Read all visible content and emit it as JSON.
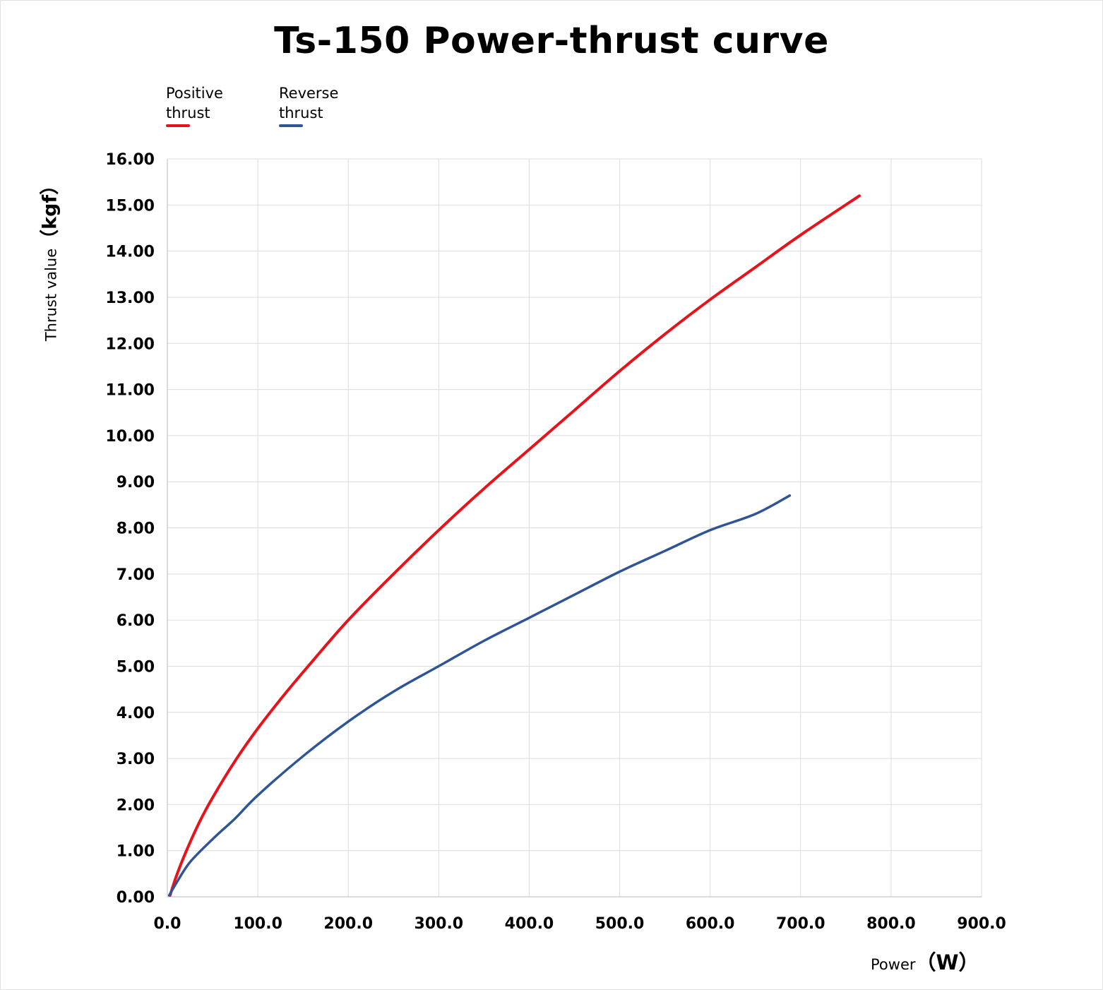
{
  "chart_data": {
    "type": "line",
    "title": "Ts-150 Power-thrust curve",
    "xlabel": "Power",
    "xlabel_unit": "（W）",
    "ylabel": "Thrust value",
    "ylabel_unit": "（kgf）",
    "xlim": [
      0,
      900
    ],
    "ylim": [
      0,
      16
    ],
    "x_ticks": [
      "0.0",
      "100.0",
      "200.0",
      "300.0",
      "400.0",
      "500.0",
      "600.0",
      "700.0",
      "800.0",
      "900.0"
    ],
    "y_ticks": [
      "0.00",
      "1.00",
      "2.00",
      "3.00",
      "4.00",
      "5.00",
      "6.00",
      "7.00",
      "8.00",
      "9.00",
      "10.00",
      "11.00",
      "12.00",
      "13.00",
      "14.00",
      "15.00",
      "16.00"
    ],
    "grid": true,
    "legend_position": "top-left",
    "series": [
      {
        "name": "Positive thrust",
        "color": "#e8121b",
        "points": [
          [
            3,
            0.03
          ],
          [
            10,
            0.45
          ],
          [
            20,
            0.95
          ],
          [
            35,
            1.6
          ],
          [
            50,
            2.15
          ],
          [
            75,
            2.95
          ],
          [
            100,
            3.65
          ],
          [
            130,
            4.4
          ],
          [
            160,
            5.1
          ],
          [
            200,
            6.0
          ],
          [
            250,
            7.0
          ],
          [
            300,
            7.95
          ],
          [
            350,
            8.85
          ],
          [
            400,
            9.7
          ],
          [
            450,
            10.55
          ],
          [
            500,
            11.4
          ],
          [
            550,
            12.2
          ],
          [
            600,
            12.95
          ],
          [
            650,
            13.65
          ],
          [
            700,
            14.35
          ],
          [
            765,
            15.2
          ]
        ]
      },
      {
        "name": "Reverse thrust",
        "color": "#2f5597",
        "points": [
          [
            2,
            0.03
          ],
          [
            10,
            0.3
          ],
          [
            25,
            0.75
          ],
          [
            50,
            1.25
          ],
          [
            75,
            1.7
          ],
          [
            100,
            2.2
          ],
          [
            150,
            3.05
          ],
          [
            200,
            3.8
          ],
          [
            250,
            4.45
          ],
          [
            300,
            5.0
          ],
          [
            350,
            5.55
          ],
          [
            400,
            6.05
          ],
          [
            450,
            6.55
          ],
          [
            500,
            7.05
          ],
          [
            550,
            7.5
          ],
          [
            600,
            7.95
          ],
          [
            650,
            8.3
          ],
          [
            688,
            8.7
          ]
        ]
      }
    ]
  }
}
